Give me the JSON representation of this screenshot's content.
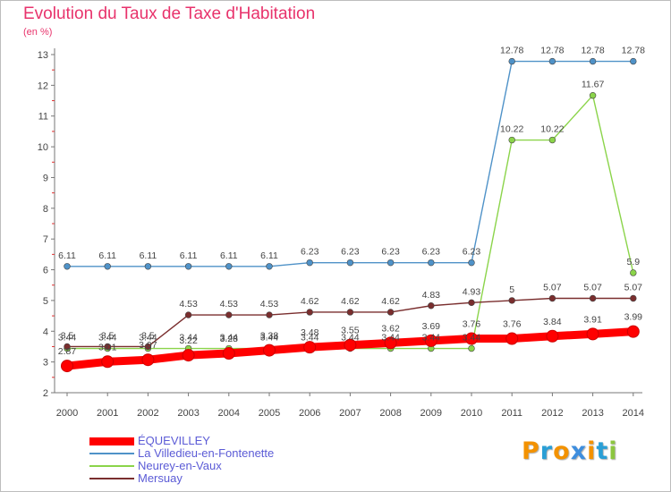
{
  "title": "Evolution du Taux de Taxe d'Habitation",
  "unit_label": "(en %)",
  "logo": {
    "text": "Proxiti",
    "letters": [
      "P",
      "r",
      "o",
      "x",
      "i",
      "t",
      "i"
    ],
    "colors": [
      "#f39200",
      "#2a9fd6",
      "#f39200",
      "#3e8ede",
      "#f39200",
      "#2a9fd6",
      "#8cc63f"
    ]
  },
  "chart_data": {
    "type": "line",
    "title": "Evolution du Taux de Taxe d'Habitation",
    "ylabel": "(en %)",
    "xlabel": "",
    "x": [
      "2000",
      "2001",
      "2002",
      "2003",
      "2004",
      "2005",
      "2006",
      "2007",
      "2008",
      "2009",
      "2010",
      "2011",
      "2012",
      "2013",
      "2014"
    ],
    "ylim": [
      2,
      13
    ],
    "yticks": [
      "2",
      "3",
      "4",
      "5",
      "6",
      "7",
      "8",
      "9",
      "10",
      "11",
      "12",
      "13"
    ],
    "grid": false,
    "legend_position": "bottom-left",
    "series": [
      {
        "name": "ÉQUEVILLEY",
        "color": "#ff0000",
        "thick": true,
        "values": [
          2.87,
          3.01,
          3.07,
          3.22,
          3.28,
          3.38,
          3.48,
          3.55,
          3.62,
          3.69,
          3.76,
          3.76,
          3.84,
          3.91,
          3.99
        ],
        "labels": [
          "2.87",
          "3.01",
          "3.07",
          "3.22",
          "3.28",
          "3.38",
          "3.48",
          "3.55",
          "3.62",
          "3.69",
          "3.76",
          "3.76",
          "3.84",
          "3.91",
          "3.99"
        ]
      },
      {
        "name": "La Villedieu-en-Fontenette",
        "color": "#4f92c8",
        "thick": false,
        "values": [
          6.11,
          6.11,
          6.11,
          6.11,
          6.11,
          6.11,
          6.23,
          6.23,
          6.23,
          6.23,
          6.23,
          12.78,
          12.78,
          12.78,
          12.78
        ],
        "labels": [
          "6.11",
          "6.11",
          "6.11",
          "6.11",
          "6.11",
          "6.11",
          "6.23",
          "6.23",
          "6.23",
          "6.23",
          "6.23",
          "12.78",
          "12.78",
          "12.78",
          "12.78"
        ]
      },
      {
        "name": "Neurey-en-Vaux",
        "color": "#8bd44a",
        "thick": false,
        "values": [
          3.44,
          3.44,
          3.44,
          3.44,
          3.44,
          3.44,
          3.44,
          3.44,
          3.44,
          3.44,
          3.44,
          10.22,
          10.22,
          11.67,
          5.9
        ],
        "labels": [
          "3.44",
          "3.44",
          "3.44",
          "3.44",
          "3.44",
          "3.44",
          "3.44",
          "3.44",
          "3.44",
          "3.44",
          "3.44",
          "10.22",
          "10.22",
          "11.67",
          "5.9"
        ]
      },
      {
        "name": "Mersuay",
        "color": "#7a2e2e",
        "thick": false,
        "values": [
          3.5,
          3.5,
          3.5,
          4.53,
          4.53,
          4.53,
          4.62,
          4.62,
          4.62,
          4.83,
          4.93,
          5,
          5.07,
          5.07,
          5.07
        ],
        "labels": [
          "3.5",
          "3.5",
          "3.5",
          "4.53",
          "4.53",
          "4.53",
          "4.62",
          "4.62",
          "4.62",
          "4.83",
          "4.93",
          "5",
          "5.07",
          "5.07",
          "5.07"
        ]
      }
    ]
  }
}
